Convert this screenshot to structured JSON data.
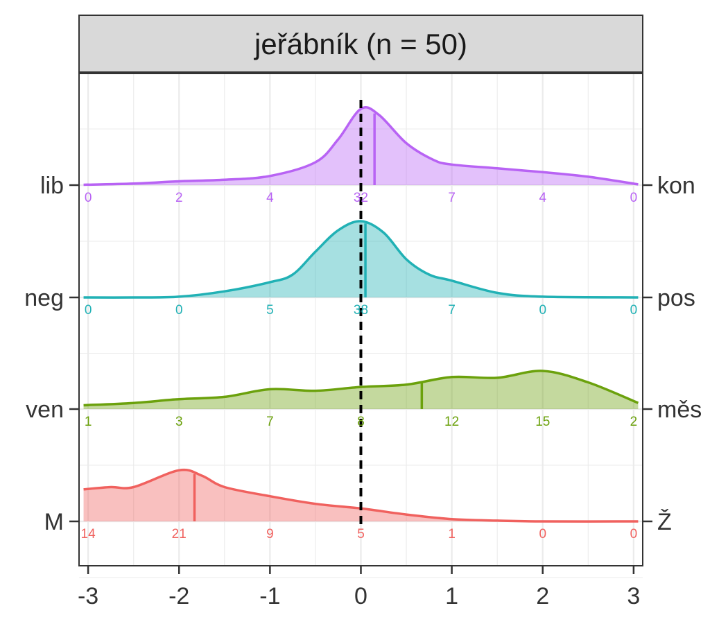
{
  "chart_data": {
    "type": "area",
    "title": "jeřábník (n = 50)",
    "xlim": [
      -3.1,
      3.1
    ],
    "x_ticks": [
      -3,
      -2,
      -1,
      0,
      1,
      2,
      3
    ],
    "x_tick_labels": [
      "-3",
      "-2",
      "-1",
      "0",
      "1",
      "2",
      "3"
    ],
    "reference_line_x": 0,
    "grid": true,
    "count_positions": [
      -3,
      -2,
      -1,
      0,
      1,
      2,
      3
    ],
    "series": [
      {
        "left_label": "lib",
        "right_label": "kon",
        "color": "#B863F4",
        "mean": 0.15,
        "counts": [
          "0",
          "2",
          "4",
          "32",
          "7",
          "4",
          "0"
        ],
        "density": [
          [
            -3.05,
            0.005
          ],
          [
            -2.5,
            0.02
          ],
          [
            -2,
            0.05
          ],
          [
            -1.5,
            0.07
          ],
          [
            -1,
            0.12
          ],
          [
            -0.5,
            0.3
          ],
          [
            -0.25,
            0.6
          ],
          [
            0,
            1.0
          ],
          [
            0.2,
            0.92
          ],
          [
            0.5,
            0.55
          ],
          [
            0.8,
            0.33
          ],
          [
            1,
            0.27
          ],
          [
            1.5,
            0.22
          ],
          [
            2,
            0.17
          ],
          [
            2.5,
            0.11
          ],
          [
            3.05,
            0.01
          ]
        ]
      },
      {
        "left_label": "neg",
        "right_label": "pos",
        "color": "#21B1B5",
        "mean": 0.05,
        "counts": [
          "0",
          "0",
          "5",
          "38",
          "7",
          "0",
          "0"
        ],
        "density": [
          [
            -3.05,
            0
          ],
          [
            -2.5,
            0
          ],
          [
            -2,
            0.01
          ],
          [
            -1.5,
            0.08
          ],
          [
            -1,
            0.2
          ],
          [
            -0.75,
            0.3
          ],
          [
            -0.5,
            0.6
          ],
          [
            -0.25,
            0.88
          ],
          [
            0,
            1.0
          ],
          [
            0.25,
            0.85
          ],
          [
            0.5,
            0.5
          ],
          [
            0.75,
            0.3
          ],
          [
            1,
            0.22
          ],
          [
            1.5,
            0.06
          ],
          [
            2,
            0.01
          ],
          [
            3.05,
            0
          ]
        ]
      },
      {
        "left_label": "ven",
        "right_label": "měs",
        "color": "#6BA10C",
        "mean": 0.67,
        "counts": [
          "1",
          "3",
          "7",
          "8",
          "12",
          "15",
          "2"
        ],
        "density": [
          [
            -3.05,
            0.05
          ],
          [
            -2.5,
            0.08
          ],
          [
            -2,
            0.13
          ],
          [
            -1.5,
            0.16
          ],
          [
            -1,
            0.26
          ],
          [
            -0.5,
            0.24
          ],
          [
            0,
            0.29
          ],
          [
            0.5,
            0.32
          ],
          [
            1,
            0.42
          ],
          [
            1.5,
            0.41
          ],
          [
            2,
            0.5
          ],
          [
            2.5,
            0.35
          ],
          [
            3.05,
            0.08
          ]
        ]
      },
      {
        "left_label": "M",
        "right_label": "Ž",
        "color": "#F0615E",
        "mean": -1.83,
        "counts": [
          "14",
          "21",
          "9",
          "5",
          "1",
          "0",
          "0"
        ],
        "density": [
          [
            -3.05,
            0.42
          ],
          [
            -2.75,
            0.45
          ],
          [
            -2.5,
            0.45
          ],
          [
            -2,
            0.67
          ],
          [
            -1.75,
            0.6
          ],
          [
            -1.5,
            0.45
          ],
          [
            -1,
            0.33
          ],
          [
            -0.5,
            0.23
          ],
          [
            0,
            0.17
          ],
          [
            0.5,
            0.09
          ],
          [
            1,
            0.03
          ],
          [
            1.5,
            0.01
          ],
          [
            2,
            0
          ],
          [
            3.05,
            0
          ]
        ]
      }
    ]
  }
}
